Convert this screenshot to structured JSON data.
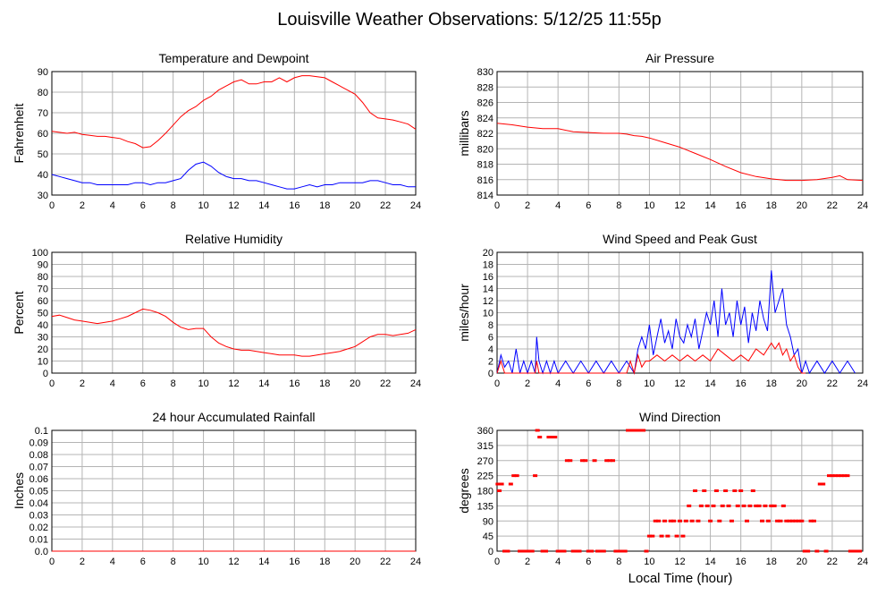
{
  "page_title": "Louisville Weather Observations: 5/12/25 11:55p",
  "x_axis_label": "Local Time (hour)",
  "colors": {
    "red": "#ff0000",
    "blue": "#0000ff",
    "grid": "#b4b4b4"
  },
  "chart_data": [
    {
      "id": "temp",
      "type": "line",
      "title": "Temperature and Dewpoint",
      "ylabel": "Fahrenheit",
      "xlim": [
        0,
        24
      ],
      "ylim": [
        30,
        90
      ],
      "xticks": [
        0,
        2,
        4,
        6,
        8,
        10,
        12,
        14,
        16,
        18,
        20,
        22,
        24
      ],
      "yticks": [
        30,
        40,
        50,
        60,
        70,
        80,
        90
      ],
      "grid": true,
      "series": [
        {
          "color": "#ff0000",
          "x": [
            0,
            0.5,
            1,
            1.5,
            2,
            2.5,
            3,
            3.5,
            4,
            4.5,
            5,
            5.5,
            6,
            6.5,
            7,
            7.5,
            8,
            8.5,
            9,
            9.5,
            10,
            10.5,
            11,
            11.5,
            12,
            12.5,
            13,
            13.5,
            14,
            14.5,
            15,
            15.5,
            16,
            16.5,
            17,
            17.5,
            18,
            18.5,
            19,
            19.5,
            20,
            20.5,
            21,
            21.5,
            22,
            22.5,
            23,
            23.5,
            24
          ],
          "y": [
            61,
            60.5,
            60,
            60.5,
            59.5,
            59,
            58.5,
            58.5,
            58,
            57.5,
            56,
            55,
            53,
            53.5,
            56.5,
            60,
            64,
            68,
            71,
            73,
            76,
            78,
            81,
            83,
            85,
            86,
            84,
            84,
            85,
            85,
            87,
            85,
            87,
            88,
            88,
            87.5,
            87,
            85,
            83,
            81,
            79,
            75,
            70,
            67.5,
            67,
            66.5,
            65.5,
            64.5,
            62
          ]
        },
        {
          "color": "#0000ff",
          "x": [
            0,
            0.5,
            1,
            1.5,
            2,
            2.5,
            3,
            3.5,
            4,
            4.5,
            5,
            5.5,
            6,
            6.5,
            7,
            7.5,
            8,
            8.5,
            9,
            9.5,
            10,
            10.5,
            11,
            11.5,
            12,
            12.5,
            13,
            13.5,
            14,
            14.5,
            15,
            15.5,
            16,
            16.5,
            17,
            17.5,
            18,
            18.5,
            19,
            19.5,
            20,
            20.5,
            21,
            21.5,
            22,
            22.5,
            23,
            23.5,
            24
          ],
          "y": [
            40,
            39,
            38,
            37,
            36,
            36,
            35,
            35,
            35,
            35,
            35,
            36,
            36,
            35,
            36,
            36,
            37,
            38,
            42,
            45,
            46,
            44,
            41,
            39,
            38,
            38,
            37,
            37,
            36,
            35,
            34,
            33,
            33,
            34,
            35,
            34,
            35,
            35,
            36,
            36,
            36,
            36,
            37,
            37,
            36,
            35,
            35,
            34,
            34
          ]
        }
      ]
    },
    {
      "id": "pressure",
      "type": "line",
      "title": "Air Pressure",
      "ylabel": "millibars",
      "xlim": [
        0,
        24
      ],
      "ylim": [
        814,
        830
      ],
      "xticks": [
        0,
        2,
        4,
        6,
        8,
        10,
        12,
        14,
        16,
        18,
        20,
        22,
        24
      ],
      "yticks": [
        814,
        816,
        818,
        820,
        822,
        824,
        826,
        828,
        830
      ],
      "grid": true,
      "series": [
        {
          "color": "#ff0000",
          "x": [
            0,
            1,
            2,
            3,
            4,
            5,
            6,
            7,
            8,
            8.5,
            9,
            9.5,
            10,
            11,
            12,
            13,
            14,
            15,
            16,
            17,
            18,
            19,
            20,
            21,
            22,
            22.5,
            23,
            24
          ],
          "y": [
            823.3,
            823.1,
            822.8,
            822.6,
            822.6,
            822.2,
            822.1,
            822.0,
            822.0,
            821.9,
            821.7,
            821.6,
            821.4,
            820.8,
            820.2,
            819.4,
            818.6,
            817.7,
            816.9,
            816.4,
            816.1,
            815.9,
            815.9,
            816.0,
            816.3,
            816.5,
            816.0,
            815.9
          ]
        }
      ]
    },
    {
      "id": "humidity",
      "type": "line",
      "title": "Relative Humidity",
      "ylabel": "Percent",
      "xlim": [
        0,
        24
      ],
      "ylim": [
        0,
        100
      ],
      "xticks": [
        0,
        2,
        4,
        6,
        8,
        10,
        12,
        14,
        16,
        18,
        20,
        22,
        24
      ],
      "yticks": [
        0,
        10,
        20,
        30,
        40,
        50,
        60,
        70,
        80,
        90,
        100
      ],
      "grid": true,
      "series": [
        {
          "color": "#ff0000",
          "x": [
            0,
            0.5,
            1,
            1.5,
            2,
            2.5,
            3,
            3.5,
            4,
            4.5,
            5,
            5.5,
            6,
            6.5,
            7,
            7.5,
            8,
            8.5,
            9,
            9.5,
            10,
            10.5,
            11,
            11.5,
            12,
            12.5,
            13,
            13.5,
            14,
            14.5,
            15,
            15.5,
            16,
            16.5,
            17,
            17.5,
            18,
            18.5,
            19,
            19.5,
            20,
            20.5,
            21,
            21.5,
            22,
            22.5,
            23,
            23.5,
            24
          ],
          "y": [
            47,
            48,
            46,
            44,
            43,
            42,
            41,
            42,
            43,
            45,
            47,
            50,
            53,
            52,
            50,
            47,
            42,
            38,
            36,
            37,
            37,
            30,
            25,
            22,
            20,
            19,
            19,
            18,
            17,
            16,
            15,
            15,
            15,
            14,
            14,
            15,
            16,
            17,
            18,
            20,
            22,
            26,
            30,
            32,
            32,
            31,
            32,
            33,
            36
          ]
        }
      ]
    },
    {
      "id": "wind",
      "type": "line",
      "title": "Wind Speed and Peak Gust",
      "ylabel": "miles/hour",
      "xlim": [
        0,
        24
      ],
      "ylim": [
        0,
        20
      ],
      "xticks": [
        0,
        2,
        4,
        6,
        8,
        10,
        12,
        14,
        16,
        18,
        20,
        22,
        24
      ],
      "yticks": [
        0,
        2,
        4,
        6,
        8,
        10,
        12,
        14,
        16,
        18,
        20
      ],
      "grid": true,
      "series": [
        {
          "color": "#0000ff",
          "x": [
            0,
            0.25,
            0.5,
            0.75,
            1,
            1.25,
            1.5,
            1.75,
            2,
            2.25,
            2.5,
            2.6,
            2.75,
            3,
            3.25,
            3.5,
            3.75,
            4,
            4.5,
            5,
            5.5,
            6,
            6.5,
            7,
            7.5,
            8,
            8.5,
            9,
            9.25,
            9.5,
            9.75,
            10,
            10.25,
            10.5,
            10.75,
            11,
            11.25,
            11.5,
            11.75,
            12,
            12.25,
            12.5,
            12.75,
            13,
            13.25,
            13.5,
            13.75,
            14,
            14.25,
            14.5,
            14.75,
            15,
            15.25,
            15.5,
            15.75,
            16,
            16.25,
            16.5,
            16.75,
            17,
            17.25,
            17.5,
            17.75,
            18,
            18.25,
            18.5,
            18.75,
            19,
            19.25,
            19.5,
            19.75,
            20,
            20.25,
            20.5,
            21,
            21.5,
            22,
            22.5,
            23,
            23.5
          ],
          "y": [
            0,
            3,
            1,
            2,
            0,
            4,
            0,
            2,
            0,
            2,
            0,
            6,
            2,
            0,
            2,
            0,
            2,
            0,
            2,
            0,
            2,
            0,
            2,
            0,
            2,
            0,
            2,
            0,
            4,
            6,
            4,
            8,
            3,
            6,
            9,
            5,
            7,
            4,
            9,
            6,
            5,
            8,
            6,
            9,
            4,
            7,
            10,
            8,
            12,
            6,
            14,
            8,
            10,
            6,
            12,
            8,
            11,
            5,
            10,
            7,
            12,
            9,
            7,
            17,
            10,
            12,
            14,
            8,
            6,
            3,
            4,
            0,
            2,
            0,
            2,
            0,
            2,
            0,
            2,
            0
          ]
        },
        {
          "color": "#ff0000",
          "x": [
            0,
            0.25,
            0.5,
            2.5,
            2.6,
            2.75,
            8.5,
            8.75,
            9,
            9.25,
            9.5,
            9.75,
            10,
            10.5,
            11,
            11.5,
            12,
            12.5,
            13,
            13.5,
            14,
            14.5,
            15,
            15.5,
            16,
            16.5,
            17,
            17.5,
            18,
            18.25,
            18.5,
            18.75,
            19,
            19.25,
            19.5,
            19.75,
            20,
            20.25
          ],
          "y": [
            0,
            2,
            0,
            0,
            2,
            0,
            0,
            2,
            0,
            3,
            1,
            2,
            2,
            3,
            2,
            3,
            2,
            3,
            2,
            3,
            2,
            4,
            3,
            2,
            3,
            2,
            4,
            3,
            5,
            4,
            5,
            3,
            4,
            2,
            3,
            1,
            0,
            0
          ]
        }
      ]
    },
    {
      "id": "rain",
      "type": "line",
      "title": "24 hour Accumulated Rainfall",
      "ylabel": "Inches",
      "xlim": [
        0,
        24
      ],
      "ylim": [
        0,
        0.1
      ],
      "xticks": [
        0,
        2,
        4,
        6,
        8,
        10,
        12,
        14,
        16,
        18,
        20,
        22,
        24
      ],
      "yticks": [
        0.0,
        0.01,
        0.02,
        0.03,
        0.04,
        0.05,
        0.06,
        0.07,
        0.08,
        0.09,
        0.1
      ],
      "ytick_labels": [
        "0.0",
        "0.01",
        "0.02",
        "0.03",
        "0.04",
        "0.05",
        "0.06",
        "0.07",
        "0.08",
        "0.09",
        "0.1"
      ],
      "grid": true,
      "series": [
        {
          "color": "#ff0000",
          "x": [
            0,
            24
          ],
          "y": [
            0,
            0
          ]
        }
      ]
    },
    {
      "id": "direction",
      "type": "scatter",
      "title": "Wind Direction",
      "ylabel": "degrees",
      "xlim": [
        0,
        24
      ],
      "ylim": [
        0,
        360
      ],
      "xticks": [
        0,
        2,
        4,
        6,
        8,
        10,
        12,
        14,
        16,
        18,
        20,
        22,
        24
      ],
      "yticks": [
        0,
        45,
        90,
        135,
        180,
        225,
        270,
        315,
        360
      ],
      "grid": true,
      "series": [
        {
          "color": "#ff0000",
          "x": [
            0.05,
            0.15,
            0.3,
            0.5,
            0.7,
            0.9,
            1.1,
            1.3,
            1.5,
            1.7,
            1.9,
            2.1,
            2.3,
            2.5,
            2.65,
            2.8,
            3.0,
            3.2,
            3.4,
            3.6,
            3.8,
            4.0,
            4.2,
            4.4,
            4.6,
            4.8,
            5.0,
            5.2,
            5.4,
            5.6,
            5.8,
            6.0,
            6.2,
            6.4,
            6.6,
            6.8,
            7.0,
            7.2,
            7.4,
            7.6,
            7.8,
            8.0,
            8.2,
            8.4,
            8.6,
            8.8,
            9.0,
            9.2,
            9.4,
            9.6,
            9.8,
            10.0,
            10.2,
            10.4,
            10.6,
            10.8,
            11.0,
            11.2,
            11.4,
            11.6,
            11.8,
            12.0,
            12.2,
            12.4,
            12.6,
            12.8,
            13.0,
            13.2,
            13.4,
            13.6,
            13.8,
            14.0,
            14.2,
            14.4,
            14.6,
            14.8,
            15.0,
            15.2,
            15.4,
            15.6,
            15.8,
            16.0,
            16.2,
            16.4,
            16.6,
            16.8,
            17.0,
            17.2,
            17.4,
            17.6,
            17.8,
            18.0,
            18.2,
            18.4,
            18.6,
            18.8,
            19.0,
            19.2,
            19.4,
            19.6,
            19.8,
            20.0,
            20.2,
            20.4,
            20.6,
            20.8,
            21.0,
            21.2,
            21.4,
            21.6,
            21.8,
            22.0,
            22.2,
            22.4,
            22.6,
            22.8,
            23.0,
            23.2,
            23.4,
            23.6,
            23.8
          ],
          "y": [
            200,
            180,
            200,
            0,
            0,
            200,
            225,
            225,
            0,
            0,
            0,
            0,
            0,
            225,
            360,
            340,
            0,
            0,
            340,
            340,
            340,
            0,
            0,
            0,
            270,
            270,
            0,
            0,
            0,
            270,
            270,
            0,
            0,
            270,
            0,
            0,
            0,
            270,
            270,
            270,
            0,
            0,
            0,
            0,
            360,
            360,
            360,
            360,
            360,
            360,
            0,
            45,
            45,
            90,
            90,
            45,
            90,
            45,
            90,
            90,
            45,
            90,
            45,
            90,
            135,
            90,
            180,
            90,
            135,
            180,
            135,
            90,
            135,
            180,
            90,
            135,
            180,
            135,
            90,
            180,
            135,
            180,
            135,
            90,
            135,
            180,
            135,
            135,
            90,
            135,
            90,
            135,
            135,
            90,
            90,
            135,
            90,
            90,
            90,
            90,
            90,
            90,
            0,
            0,
            90,
            90,
            0,
            200,
            200,
            0,
            225,
            225,
            225,
            225,
            225,
            225,
            225,
            0,
            0,
            0,
            0
          ]
        }
      ]
    }
  ]
}
